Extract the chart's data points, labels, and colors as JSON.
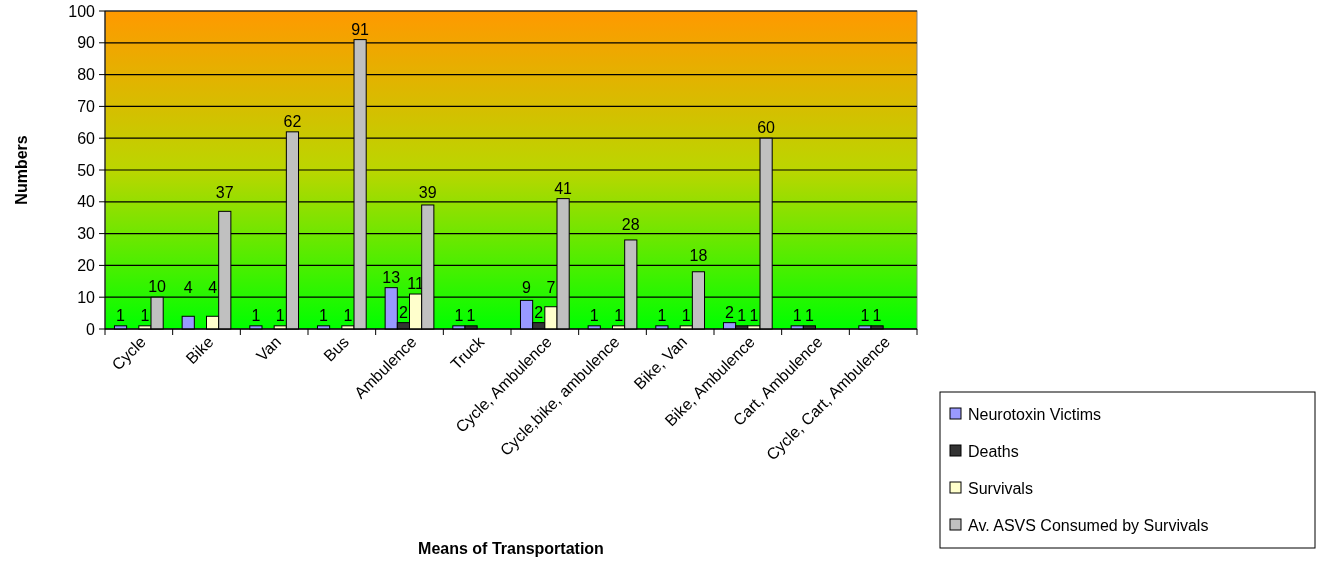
{
  "chart_data": {
    "type": "bar",
    "xlabel": "Means of Transportation",
    "ylabel": "Numbers",
    "categories": [
      "Cycle",
      "Bike",
      "Van",
      "Bus",
      "Ambulence",
      "Truck",
      "Cycle, Ambulence",
      "Cycle,bike, ambulence",
      "Bike, Van",
      "Bike, Ambulence",
      "Cart, Ambulence",
      "Cycle, Cart, Ambulence"
    ],
    "series": [
      {
        "name": "Neurotoxin Victims",
        "color": "#9999ff",
        "values": [
          1,
          4,
          1,
          1,
          13,
          1,
          9,
          1,
          1,
          2,
          1,
          1
        ]
      },
      {
        "name": "Deaths",
        "color": "#333333",
        "values": [
          null,
          null,
          null,
          null,
          2,
          1,
          2,
          null,
          null,
          1,
          1,
          1
        ]
      },
      {
        "name": "Survivals",
        "color": "#ffffcc",
        "values": [
          1,
          4,
          1,
          1,
          11,
          null,
          7,
          1,
          1,
          1,
          null,
          null
        ]
      },
      {
        "name": "Av. ASVS Consumed by Survivals",
        "color": "#c0c0c0",
        "values": [
          10,
          37,
          62,
          91,
          39,
          null,
          41,
          28,
          18,
          60,
          null,
          null
        ]
      }
    ],
    "ylim": [
      0,
      100
    ],
    "yticks": [
      0,
      10,
      20,
      30,
      40,
      50,
      60,
      70,
      80,
      90,
      100
    ],
    "grid": "y",
    "legend": "bottom right",
    "data_labels": true
  }
}
